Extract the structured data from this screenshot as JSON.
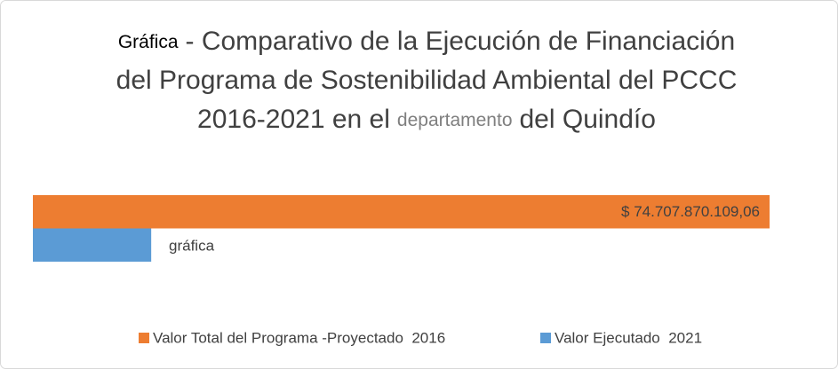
{
  "chart_data": {
    "type": "bar",
    "orientation": "horizontal",
    "title_lines": [
      [
        "Gráfica",
        "- Comparativo de la Ejecución de Financiación"
      ],
      [
        "del Programa de Sostenibilidad Ambiental del PCCC"
      ],
      [
        "2016-2021 en el",
        "departamento",
        "del Quindío"
      ]
    ],
    "series": [
      {
        "name": "Valor Total del Programa -Proyectado  2016",
        "color": "#ed7d31",
        "values": [
          74707870109.06
        ],
        "value_labels": [
          "$ 74.707.870.109,06"
        ]
      },
      {
        "name": "Valor Ejecutado  2021",
        "color": "#5b9bd5",
        "values": [
          12000000000
        ]
      }
    ],
    "annotations": [
      "gráfica"
    ],
    "legend": "bottom"
  }
}
